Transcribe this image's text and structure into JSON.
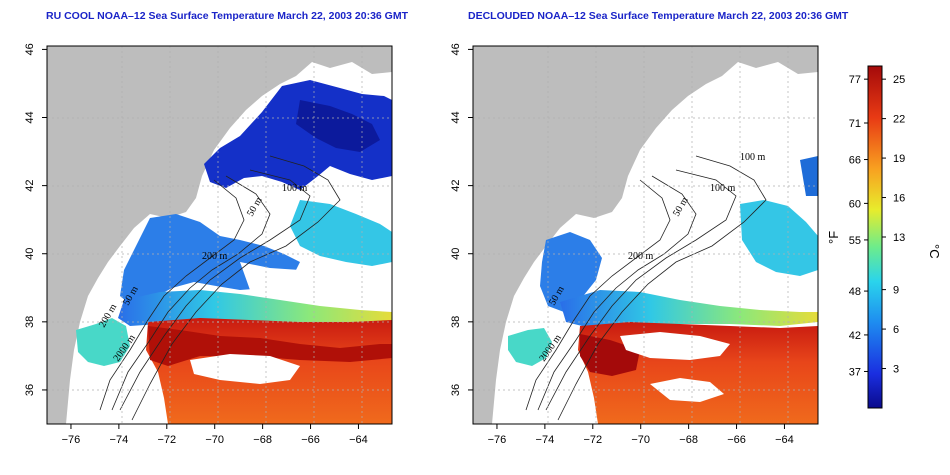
{
  "panels": [
    {
      "title": "RU COOL NOAA–12 Sea Surface Temperature March 22, 2003 20:36 GMT",
      "contour_labels": [
        "50 m",
        "100 m",
        "200 m",
        "50 m",
        "200 m",
        "2000 m"
      ]
    },
    {
      "title": "DECLOUDED NOAA–12 Sea Surface Temperature March 22, 2003 20:36 GMT",
      "contour_labels": [
        "50 m",
        "100 m",
        "100 m",
        "200 m",
        "50 m",
        "2000 m"
      ]
    }
  ],
  "axes": {
    "lon_ticks": [
      "−76",
      "−74",
      "−72",
      "−70",
      "−68",
      "−66",
      "−64"
    ],
    "lat_ticks": [
      "36",
      "38",
      "40",
      "42",
      "44",
      "46"
    ]
  },
  "colorbar": {
    "fahrenheit_label": "°F",
    "celsius_label": "°C",
    "fahrenheit_ticks": [
      "77",
      "71",
      "66",
      "60",
      "55",
      "48",
      "42",
      "37"
    ],
    "celsius_ticks": [
      "25",
      "22",
      "19",
      "16",
      "13",
      "9",
      "6",
      "3"
    ],
    "celsius_range": [
      0,
      26
    ],
    "colors": [
      "#0a0a8c",
      "#1a2ee0",
      "#1e8cf0",
      "#2ad4ec",
      "#6cec8c",
      "#e8ec2c",
      "#f8a020",
      "#e83a14",
      "#a40a0a"
    ]
  },
  "colors": {
    "land": "#bdbdbd",
    "ocean_nodata": "#ffffff",
    "title": "#1a24c8"
  }
}
